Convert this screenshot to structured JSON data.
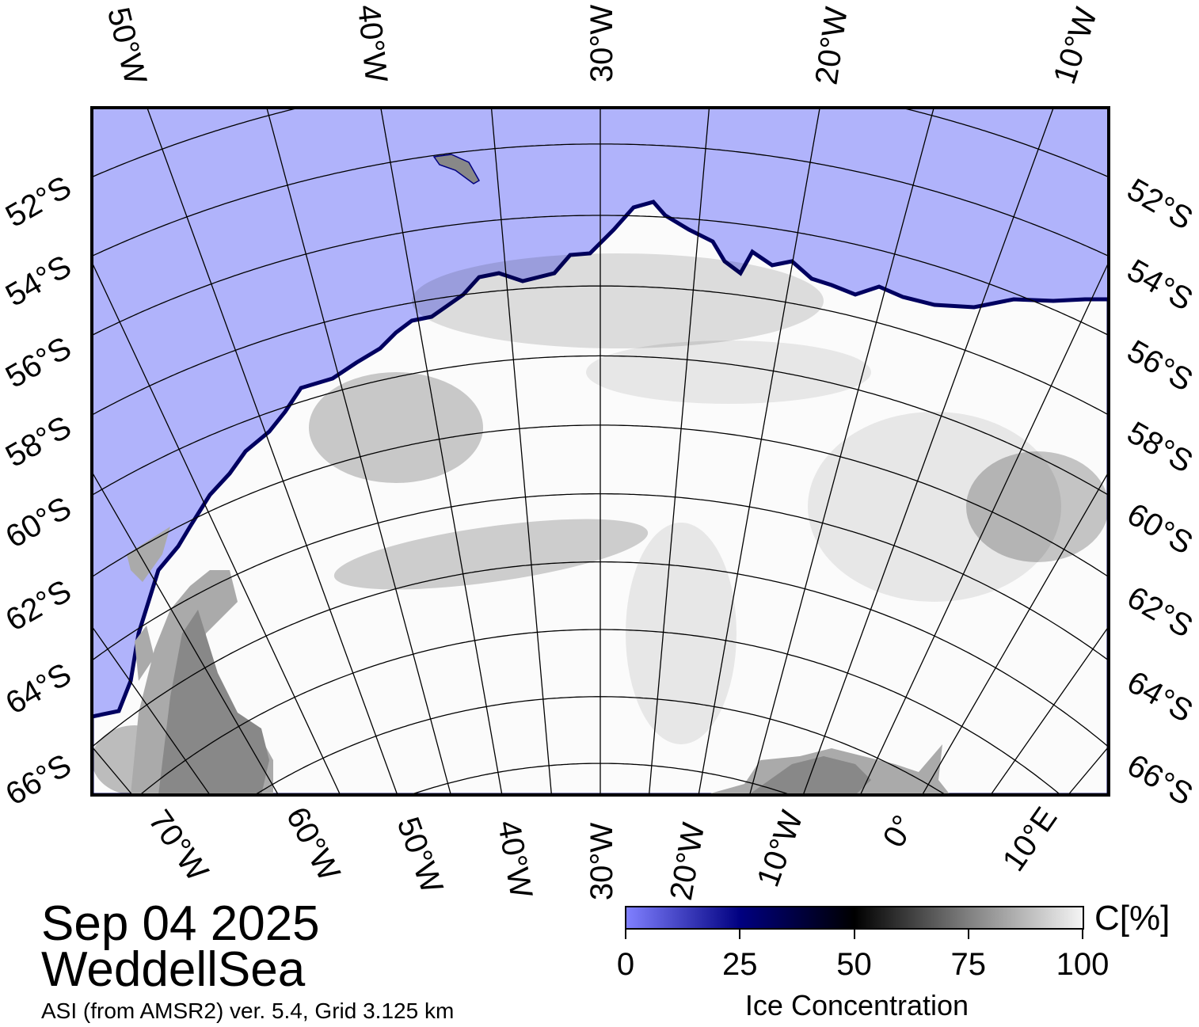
{
  "header": {
    "date": "Sep 04 2025",
    "region": "WeddellSea",
    "subtitle": "ASI (from AMSR2) ver. 5.4,  Grid 3.125 km"
  },
  "map": {
    "projection": "polar stereographic",
    "graticule": {
      "lat_step_deg": 2,
      "lon_step_deg": 5
    },
    "top_lon_labels": [
      "50°W",
      "40°W",
      "30°W",
      "20°W",
      "10°W"
    ],
    "bottom_lon_labels": [
      "70°W",
      "60°W",
      "50°W",
      "40°W",
      "30°W",
      "20°W",
      "10°W",
      "0°",
      "10°E"
    ],
    "left_lat_labels": [
      "52°S",
      "54°S",
      "56°S",
      "58°S",
      "60°S",
      "62°S",
      "64°S",
      "66°S"
    ],
    "right_lat_labels": [
      "52°S",
      "54°S",
      "56°S",
      "58°S",
      "60°S",
      "62°S",
      "64°S",
      "66°S"
    ],
    "colors": {
      "open_water": "#b0b3fb",
      "land": "#888888",
      "ice_shelf": "#aaaaaa",
      "ice_edge": "#000060",
      "graticule": "#000000"
    }
  },
  "colorbar": {
    "label": "Ice Concentration",
    "unit": "C[%]",
    "ticks": [
      "0",
      "25",
      "50",
      "75",
      "100"
    ],
    "range": [
      0,
      100
    ],
    "colors": [
      "#8080ff",
      "#000080",
      "#000000",
      "#808080",
      "#f4f4f4"
    ]
  }
}
